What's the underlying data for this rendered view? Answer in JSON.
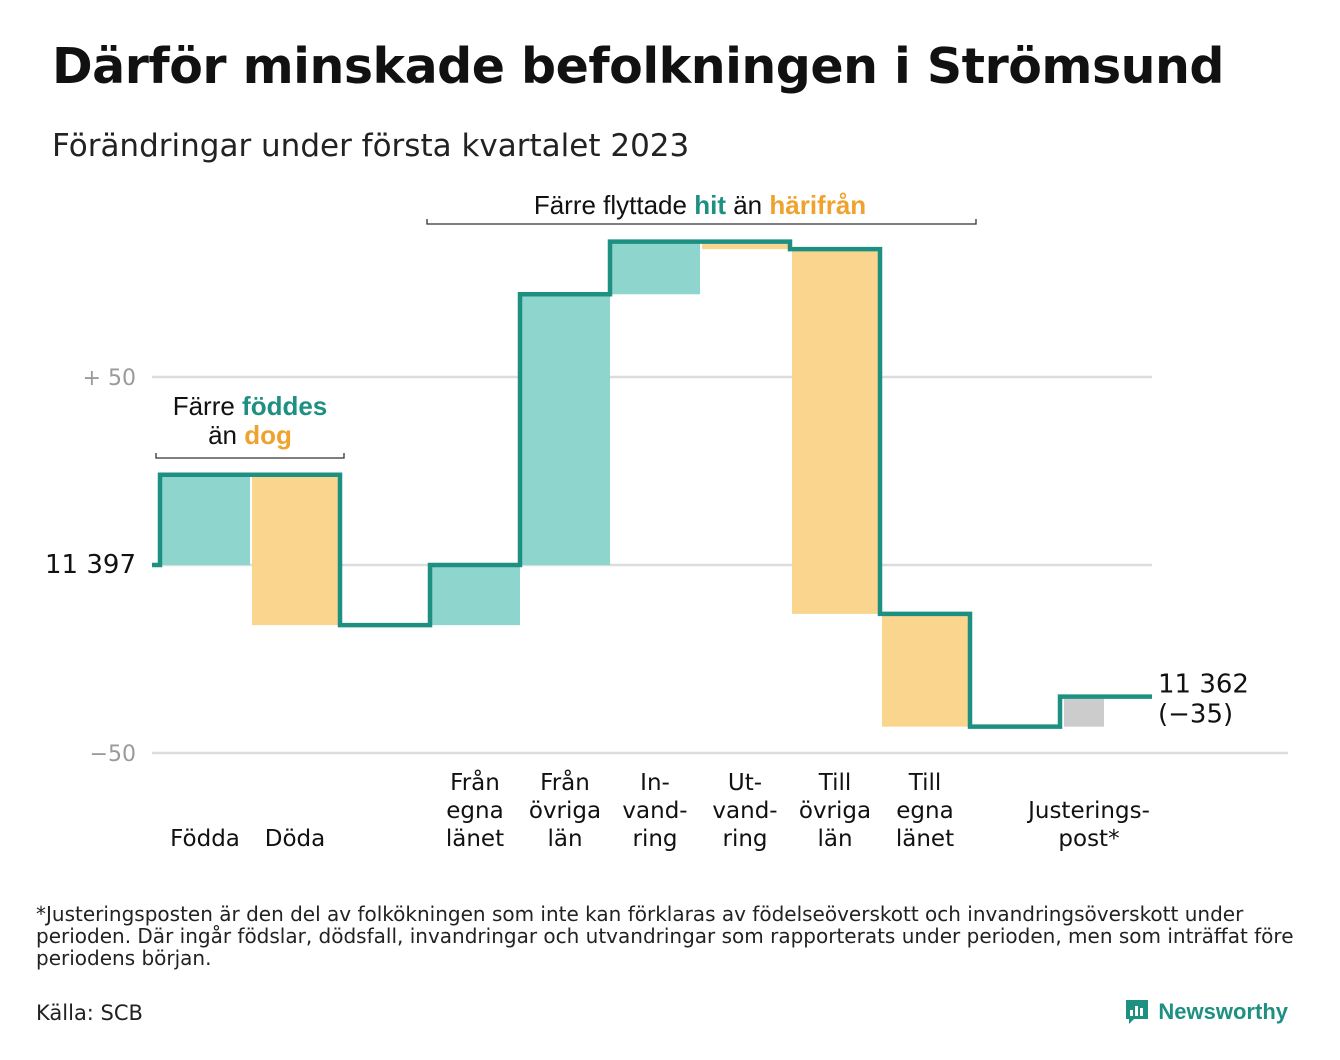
{
  "title": "Därför minskade befolkningen i Strömsund",
  "subtitle": "Förändringar under första kvartalet 2023",
  "chart_data": {
    "type": "waterfall",
    "start_value": 11397,
    "start_label": "11 397",
    "end_label_value": "11 362",
    "end_label_change": "(−35)",
    "y_axis": {
      "range_relative": [
        -50,
        100
      ],
      "ticks": [
        {
          "value": 50,
          "label": "+ 50"
        },
        {
          "value": 0,
          "label": ""
        },
        {
          "value": -50,
          "label": "−50"
        }
      ]
    },
    "steps": [
      {
        "label_lines": [
          "Födda"
        ],
        "change": 24,
        "kind": "in"
      },
      {
        "label_lines": [
          "Döda"
        ],
        "change": -40,
        "kind": "out"
      },
      {
        "label_lines": [
          "Från",
          "egna",
          "länet"
        ],
        "change": 16,
        "kind": "in"
      },
      {
        "label_lines": [
          "Från",
          "övriga",
          "län"
        ],
        "change": 72,
        "kind": "in"
      },
      {
        "label_lines": [
          "In-",
          "vand-",
          "ring"
        ],
        "change": 14,
        "kind": "in"
      },
      {
        "label_lines": [
          "Ut-",
          "vand-",
          "ring"
        ],
        "change": -2,
        "kind": "out"
      },
      {
        "label_lines": [
          "Till",
          "övriga",
          "län"
        ],
        "change": -97,
        "kind": "out"
      },
      {
        "label_lines": [
          "Till",
          "egna",
          "länet"
        ],
        "change": -30,
        "kind": "out"
      },
      {
        "label_lines": [
          "Justerings-",
          "post*"
        ],
        "change": 8,
        "kind": "adjust"
      }
    ],
    "annotations": [
      {
        "line1_parts": [
          {
            "text": "Färre ",
            "style": "plain"
          },
          {
            "text": "föddes",
            "style": "in"
          }
        ],
        "line2_parts": [
          {
            "text": "än ",
            "style": "plain"
          },
          {
            "text": "dog",
            "style": "out"
          }
        ]
      },
      {
        "line1_parts": [
          {
            "text": "Färre flyttade ",
            "style": "plain"
          },
          {
            "text": "hit",
            "style": "in"
          },
          {
            "text": " än ",
            "style": "plain"
          },
          {
            "text": "härifrån",
            "style": "out"
          }
        ]
      }
    ],
    "colors": {
      "in_fill": "#8ed6cd",
      "out_fill": "#fad58e",
      "adjust_fill": "#cccccc",
      "line": "#1e9082",
      "in_text": "#1e9082",
      "out_text": "#f0a22e",
      "grid": "#dcdcdc",
      "tick_text": "#9a9a9a"
    }
  },
  "footnote": "*Justeringsposten är den del av folkökningen som inte kan förklaras av födelseöverskott och invandringsöverskott under perioden. Där ingår födslar, dödsfall, invandringar och utvandringar som rapporterats under perioden, men som inträffat före periodens början.",
  "source": "Källa: SCB",
  "brand": "Newsworthy"
}
